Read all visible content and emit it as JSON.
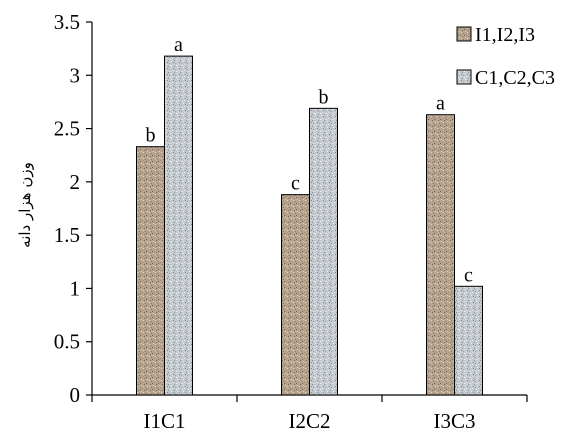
{
  "chart_data": {
    "type": "bar",
    "title": "",
    "xlabel": "",
    "ylabel": "وزن هزار دانه",
    "categories": [
      "I1C1",
      "I2C2",
      "I3C3"
    ],
    "ylim": [
      0,
      3.5
    ],
    "yticks": [
      "0",
      "0.5",
      "1",
      "1.5",
      "2",
      "2.5",
      "3",
      "3.5"
    ],
    "grid": false,
    "legend_position": "top-right",
    "series": [
      {
        "name": "I1,I2,I3",
        "color": "#b8a590",
        "values": [
          2.33,
          1.88,
          2.63
        ],
        "labels": [
          "b",
          "c",
          "a"
        ]
      },
      {
        "name": "C1,C2,C3",
        "color": "#c7ccd2",
        "values": [
          3.18,
          2.69,
          1.02
        ],
        "labels": [
          "a",
          "b",
          "c"
        ]
      }
    ]
  }
}
